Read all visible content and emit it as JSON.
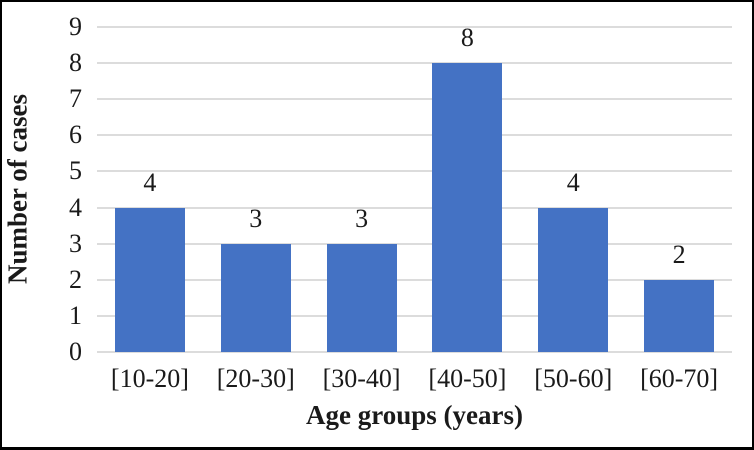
{
  "chart_data": {
    "type": "bar",
    "title": "",
    "categories": [
      "[10-20]",
      "[20-30]",
      "[30-40]",
      "[40-50]",
      "[50-60]",
      "[60-70]"
    ],
    "values": [
      4,
      3,
      3,
      8,
      4,
      2
    ],
    "data_labels": [
      "4",
      "3",
      "3",
      "8",
      "4",
      "2"
    ],
    "xlabel": "Age groups (years)",
    "ylabel": "Number of cases",
    "ylim": [
      0,
      9
    ],
    "ytick_step": 1,
    "yticks": [
      "0",
      "1",
      "2",
      "3",
      "4",
      "5",
      "6",
      "7",
      "8",
      "9"
    ],
    "grid": true,
    "legend": "none",
    "colors": {
      "bar": "#4472C4",
      "gridline": "#DCDCDC",
      "text": "#1A1A1A",
      "frame_border": "#000000",
      "background": "#FFFFFF"
    }
  }
}
